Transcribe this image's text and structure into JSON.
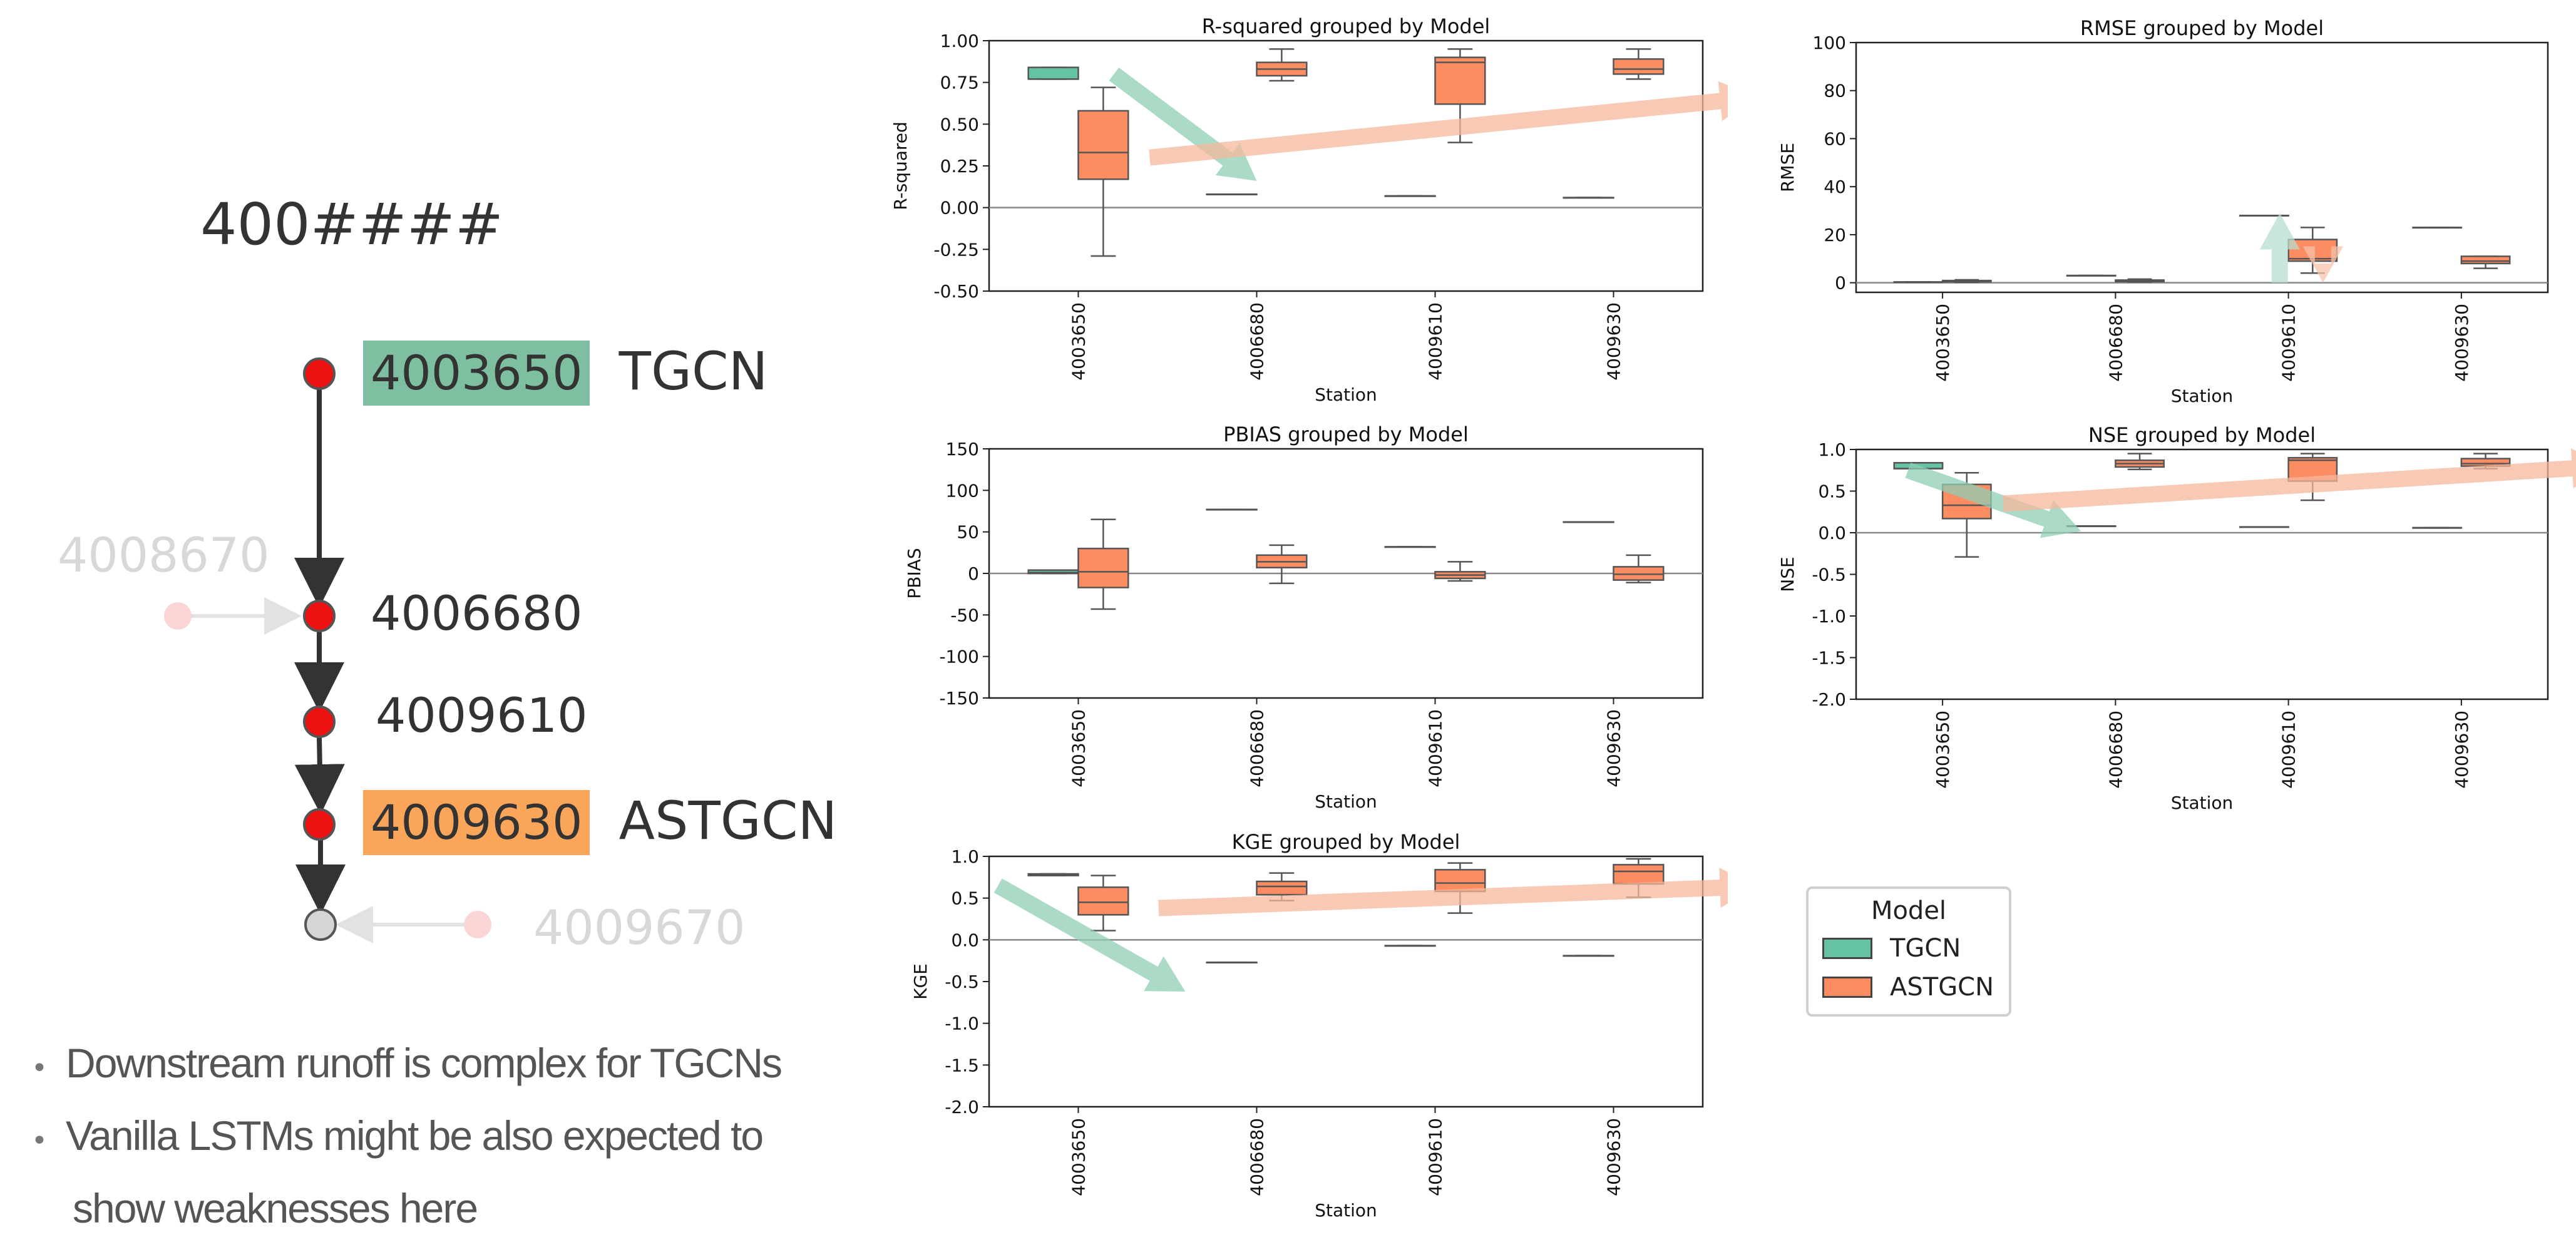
{
  "left_panel": {
    "title_code": "400####",
    "stations": [
      {
        "code": "4003650",
        "model": "TGCN",
        "highlight": "#7dbfa0"
      },
      {
        "code": "4006680"
      },
      {
        "code": "4009610"
      },
      {
        "code": "4009630",
        "model": "ASTGCN",
        "highlight": "#f9a65a"
      }
    ],
    "faded_stations": [
      "4008670",
      "4009670"
    ],
    "node_color": "#ee1111",
    "outlet_color": "#d5d5d5",
    "bullets": [
      "Downstream runoff is complex  for TGCNs",
      "Vanilla LSTMs might be also expected to",
      "show weaknesses here"
    ]
  },
  "legend": {
    "title": "Model",
    "items": [
      {
        "label": "TGCN",
        "color": "#66c2a5"
      },
      {
        "label": "ASTGCN",
        "color": "#fc8d62"
      }
    ]
  },
  "chart_data": [
    {
      "type": "box",
      "title": "R-squared grouped by Model",
      "xlabel": "Station",
      "ylabel": "R-squared",
      "categories": [
        "4003650",
        "4006680",
        "4009610",
        "4009630"
      ],
      "ylim": [
        -0.5,
        1.0
      ],
      "yticks": [
        -0.5,
        -0.25,
        0.0,
        0.25,
        0.5,
        0.75,
        1.0
      ],
      "tick_decimals": 2,
      "zero_line": true,
      "series": [
        {
          "name": "TGCN",
          "boxes": [
            {
              "min": 0.77,
              "q1": 0.77,
              "median": 0.77,
              "q3": 0.84,
              "max": 0.84
            },
            {
              "min": 0.08,
              "q1": 0.08,
              "median": 0.08,
              "q3": 0.08,
              "max": 0.08
            },
            {
              "min": 0.07,
              "q1": 0.07,
              "median": 0.07,
              "q3": 0.07,
              "max": 0.07
            },
            {
              "min": 0.06,
              "q1": 0.06,
              "median": 0.06,
              "q3": 0.06,
              "max": 0.06
            }
          ]
        },
        {
          "name": "ASTGCN",
          "boxes": [
            {
              "min": -0.29,
              "q1": 0.17,
              "median": 0.33,
              "q3": 0.58,
              "max": 0.72
            },
            {
              "min": 0.76,
              "q1": 0.79,
              "median": 0.83,
              "q3": 0.87,
              "max": 0.95
            },
            {
              "min": 0.39,
              "q1": 0.62,
              "median": 0.87,
              "q3": 0.9,
              "max": 0.95
            },
            {
              "min": 0.77,
              "q1": 0.8,
              "median": 0.83,
              "q3": 0.89,
              "max": 0.95
            }
          ]
        }
      ],
      "arrows": [
        {
          "color": "#8fcfb4",
          "from": [
            0.2,
            0.8
          ],
          "to": [
            1.0,
            0.16
          ]
        },
        {
          "color": "#f6b89c",
          "from": [
            0.4,
            0.3
          ],
          "to": [
            3.8,
            0.66
          ]
        }
      ]
    },
    {
      "type": "box",
      "title": "RMSE grouped by Model",
      "xlabel": "Station",
      "ylabel": "RMSE",
      "categories": [
        "4003650",
        "4006680",
        "4009610",
        "4009630"
      ],
      "ylim": [
        -4,
        100
      ],
      "yticks": [
        0,
        20,
        40,
        60,
        80,
        100
      ],
      "tick_decimals": 0,
      "zero_line": true,
      "series": [
        {
          "name": "TGCN",
          "boxes": [
            {
              "min": 0.3,
              "q1": 0.3,
              "median": 0.3,
              "q3": 0.3,
              "max": 0.3
            },
            {
              "min": 3,
              "q1": 3,
              "median": 3,
              "q3": 3,
              "max": 3
            },
            {
              "min": 28,
              "q1": 28,
              "median": 28,
              "q3": 28,
              "max": 28
            },
            {
              "min": 23,
              "q1": 23,
              "median": 23,
              "q3": 23,
              "max": 23
            }
          ]
        },
        {
          "name": "ASTGCN",
          "boxes": [
            {
              "min": 0.2,
              "q1": 0.4,
              "median": 0.6,
              "q3": 0.9,
              "max": 1.2
            },
            {
              "min": 0.3,
              "q1": 0.5,
              "median": 0.8,
              "q3": 1.1,
              "max": 1.5
            },
            {
              "min": 4,
              "q1": 9,
              "median": 10,
              "q3": 18,
              "max": 23
            },
            {
              "min": 6,
              "q1": 8,
              "median": 9,
              "q3": 11,
              "max": 11
            }
          ]
        }
      ],
      "arrows": [
        {
          "color": "#b5dece",
          "from": [
            1.95,
            0
          ],
          "to": [
            1.95,
            29
          ]
        },
        {
          "color": "#f6c2aa",
          "from": [
            2.2,
            8
          ],
          "to": [
            2.2,
            0
          ]
        }
      ]
    },
    {
      "type": "box",
      "title": "PBIAS grouped by Model",
      "xlabel": "Station",
      "ylabel": "PBIAS",
      "categories": [
        "4003650",
        "4006680",
        "4009610",
        "4009630"
      ],
      "ylim": [
        -150,
        150
      ],
      "yticks": [
        -150,
        -100,
        -50,
        0,
        50,
        100,
        150
      ],
      "tick_decimals": 0,
      "zero_line": true,
      "series": [
        {
          "name": "TGCN",
          "boxes": [
            {
              "min": 0,
              "q1": 0,
              "median": 1,
              "q3": 4,
              "max": 4
            },
            {
              "min": 77,
              "q1": 77,
              "median": 77,
              "q3": 77,
              "max": 77
            },
            {
              "min": 32,
              "q1": 32,
              "median": 32,
              "q3": 32,
              "max": 32
            },
            {
              "min": 62,
              "q1": 62,
              "median": 62,
              "q3": 62,
              "max": 62
            }
          ]
        },
        {
          "name": "ASTGCN",
          "boxes": [
            {
              "min": -43,
              "q1": -17,
              "median": 2,
              "q3": 30,
              "max": 65
            },
            {
              "min": -12,
              "q1": 7,
              "median": 14,
              "q3": 22,
              "max": 34
            },
            {
              "min": -9,
              "q1": -6,
              "median": -2,
              "q3": 2,
              "max": 14
            },
            {
              "min": -11,
              "q1": -8,
              "median": -1,
              "q3": 8,
              "max": 22
            }
          ]
        }
      ],
      "arrows": []
    },
    {
      "type": "box",
      "title": "NSE grouped by Model",
      "xlabel": "Station",
      "ylabel": "NSE",
      "categories": [
        "4003650",
        "4006680",
        "4009610",
        "4009630"
      ],
      "ylim": [
        -2.0,
        1.0
      ],
      "yticks": [
        -2.0,
        -1.5,
        -1.0,
        -0.5,
        0.0,
        0.5,
        1.0
      ],
      "tick_decimals": 1,
      "zero_line": true,
      "series": [
        {
          "name": "TGCN",
          "boxes": [
            {
              "min": 0.77,
              "q1": 0.77,
              "median": 0.77,
              "q3": 0.84,
              "max": 0.84
            },
            {
              "min": 0.08,
              "q1": 0.08,
              "median": 0.08,
              "q3": 0.08,
              "max": 0.08
            },
            {
              "min": 0.07,
              "q1": 0.07,
              "median": 0.07,
              "q3": 0.07,
              "max": 0.07
            },
            {
              "min": 0.06,
              "q1": 0.06,
              "median": 0.06,
              "q3": 0.06,
              "max": 0.06
            }
          ]
        },
        {
          "name": "ASTGCN",
          "boxes": [
            {
              "min": -0.29,
              "q1": 0.17,
              "median": 0.33,
              "q3": 0.58,
              "max": 0.72
            },
            {
              "min": 0.76,
              "q1": 0.79,
              "median": 0.83,
              "q3": 0.87,
              "max": 0.95
            },
            {
              "min": 0.39,
              "q1": 0.62,
              "median": 0.87,
              "q3": 0.9,
              "max": 0.95
            },
            {
              "min": 0.77,
              "q1": 0.8,
              "median": 0.83,
              "q3": 0.89,
              "max": 0.95
            }
          ]
        }
      ],
      "arrows": [
        {
          "color": "#8fcfb4",
          "from": [
            -0.2,
            0.75
          ],
          "to": [
            0.8,
            0.02
          ]
        },
        {
          "color": "#f6b89c",
          "from": [
            0.35,
            0.35
          ],
          "to": [
            3.85,
            0.8
          ]
        }
      ]
    },
    {
      "type": "box",
      "title": "KGE grouped by Model",
      "xlabel": "Station",
      "ylabel": "KGE",
      "categories": [
        "4003650",
        "4006680",
        "4009610",
        "4009630"
      ],
      "ylim": [
        -2.0,
        1.0
      ],
      "yticks": [
        -2.0,
        -1.5,
        -1.0,
        -0.5,
        0.0,
        0.5,
        1.0
      ],
      "tick_decimals": 1,
      "zero_line": true,
      "series": [
        {
          "name": "TGCN",
          "boxes": [
            {
              "min": 0.77,
              "q1": 0.77,
              "median": 0.78,
              "q3": 0.79,
              "max": 0.79
            },
            {
              "min": -0.27,
              "q1": -0.27,
              "median": -0.27,
              "q3": -0.27,
              "max": -0.27
            },
            {
              "min": -0.07,
              "q1": -0.07,
              "median": -0.07,
              "q3": -0.07,
              "max": -0.07
            },
            {
              "min": -0.19,
              "q1": -0.19,
              "median": -0.19,
              "q3": -0.19,
              "max": -0.19
            }
          ]
        },
        {
          "name": "ASTGCN",
          "boxes": [
            {
              "min": 0.11,
              "q1": 0.3,
              "median": 0.45,
              "q3": 0.63,
              "max": 0.77
            },
            {
              "min": 0.47,
              "q1": 0.54,
              "median": 0.64,
              "q3": 0.7,
              "max": 0.8
            },
            {
              "min": 0.32,
              "q1": 0.58,
              "median": 0.68,
              "q3": 0.84,
              "max": 0.92
            },
            {
              "min": 0.51,
              "q1": 0.67,
              "median": 0.82,
              "q3": 0.9,
              "max": 0.97
            }
          ]
        }
      ],
      "arrows": [
        {
          "color": "#8fcfb4",
          "from": [
            -0.45,
            0.65
          ],
          "to": [
            0.6,
            -0.62
          ]
        },
        {
          "color": "#f6b89c",
          "from": [
            0.45,
            0.38
          ],
          "to": [
            3.8,
            0.64
          ]
        }
      ]
    }
  ]
}
